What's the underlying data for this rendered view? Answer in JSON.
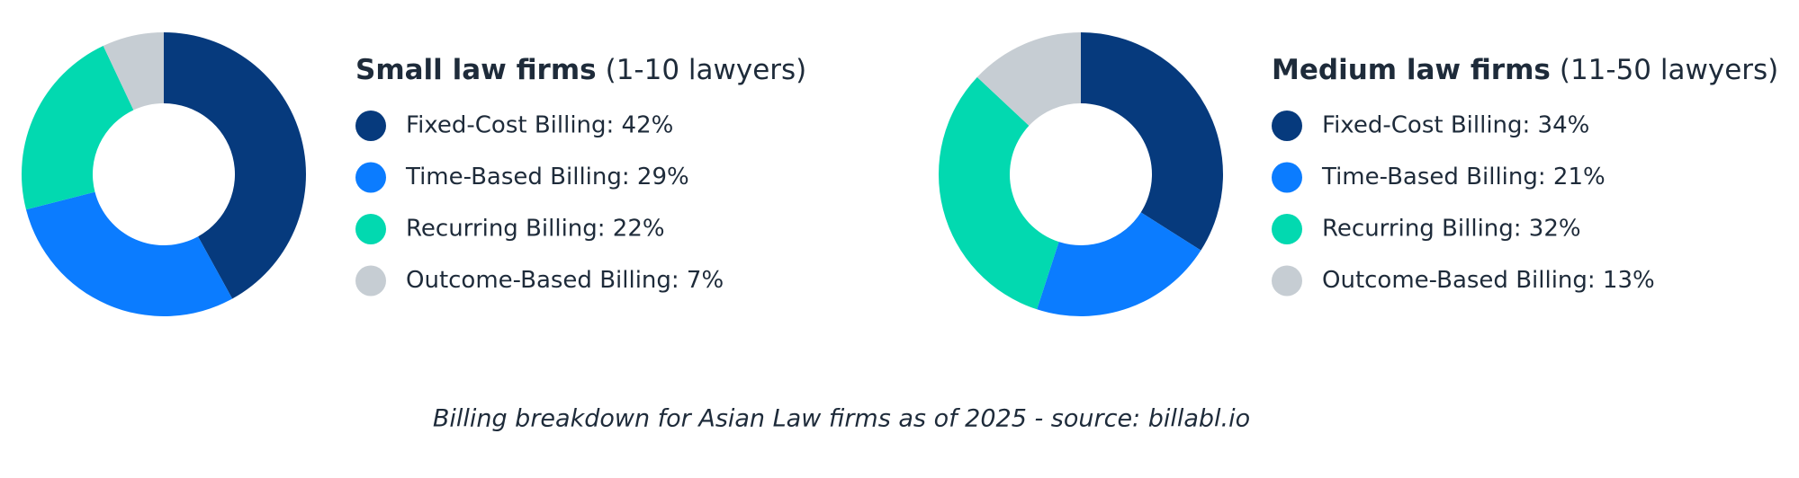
{
  "chart_data": [
    {
      "type": "pie",
      "title": "Small law firms",
      "subtitle": "(1-10 lawyers)",
      "labels": [
        "Fixed-Cost Billing: 42%",
        "Time-Based Billing: 29%",
        "Recurring Billing: 22%",
        "Outcome-Based Billing: 7%"
      ],
      "values": [
        42,
        29,
        22,
        7
      ],
      "colors": [
        "#063a7d",
        "#0b7cff",
        "#02d9b0",
        "#c6cdd3"
      ]
    },
    {
      "type": "pie",
      "title": "Medium law firms",
      "subtitle": "(11-50 lawyers)",
      "labels": [
        "Fixed-Cost Billing: 34%",
        "Time-Based Billing: 21%",
        "Recurring Billing: 32%",
        "Outcome-Based Billing: 13%"
      ],
      "values": [
        34,
        21,
        32,
        13
      ],
      "colors": [
        "#063a7d",
        "#0b7cff",
        "#02d9b0",
        "#c6cdd3"
      ]
    }
  ],
  "caption": "Billing breakdown for Asian Law firms as of 2025 - source: billabl.io"
}
